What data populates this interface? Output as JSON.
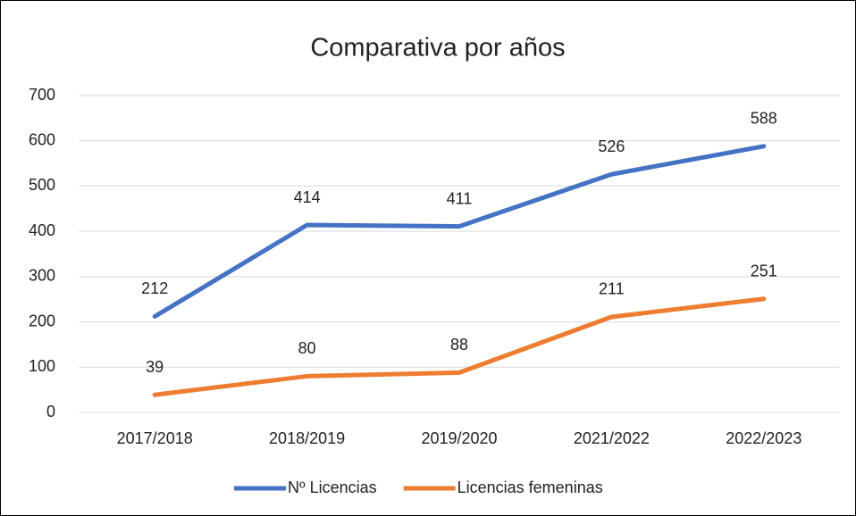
{
  "chart_data": {
    "type": "line",
    "title": "Comparativa por años",
    "categories": [
      "2017/2018",
      "2018/2019",
      "2019/2020",
      "2021/2022",
      "2022/2023"
    ],
    "series": [
      {
        "name": "Nº Licencias",
        "color": "#4472c4",
        "values": [
          212,
          414,
          411,
          526,
          588
        ]
      },
      {
        "name": "Licencias femeninas",
        "color": "#ed7d31",
        "values": [
          39,
          80,
          88,
          211,
          251
        ]
      }
    ],
    "ylim": [
      0,
      700
    ],
    "yticks": [
      0,
      100,
      200,
      300,
      400,
      500,
      600,
      700
    ],
    "grid": true,
    "legend": "bottom"
  }
}
